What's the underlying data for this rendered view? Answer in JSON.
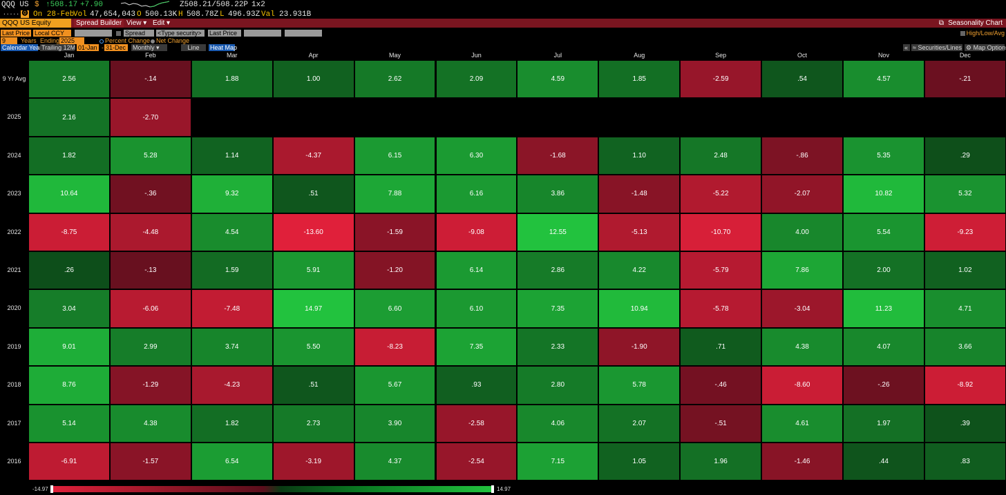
{
  "quote": {
    "ticker": "QQQ US",
    "currency_symbol": "$",
    "last_price": "↑508.17",
    "change": "+7.90",
    "bid_ask": "Z508.21/508.22P",
    "size": "1x2",
    "date_label": "On 28-Feb",
    "vol_label": "Vol",
    "vol_value": "47,654,043",
    "open_label": "O",
    "open_value": "500.13K",
    "high_label": "H",
    "high_value": "508.78Z",
    "low_label": "L",
    "low_value": "496.93Z",
    "val_label": "Val",
    "val_value": "23.931B",
    "dots": "....."
  },
  "titlebar": {
    "security": "QQQ US Equity",
    "spread_builder": "Spread Builder",
    "view_menu": "View ▾",
    "edit_menu": "Edit ▾",
    "function_title": "Seasonality Chart",
    "export_icon": "export-icon"
  },
  "controls": {
    "row1": {
      "last_price_1": "Last Price",
      "local_ccy": "Local CCY",
      "spread": "Spread",
      "type_security": "<Type security>",
      "last_price_2": "Last Price",
      "high_low_avg": "High/Low/Avg"
    },
    "row2": {
      "years_value": "9",
      "years_label": "Years",
      "ending_label": "Ending",
      "ending_value": "2025",
      "percent_change": "Percent Change",
      "net_change": "Net Change"
    },
    "row3": {
      "calendar_year": "Calendar Year",
      "trailing_12m": "Trailing 12M",
      "start_date": "01-Jan",
      "end_date": "31-Dec",
      "frequency": "Monthly ▾",
      "line": "Line",
      "heat_map": "Heat Map",
      "collapse": "«",
      "securities_lines": "≈ Securities/Lines",
      "map_options": "⚙ Map Options"
    }
  },
  "grid": {
    "columns": [
      "Jan",
      "Feb",
      "Mar",
      "Apr",
      "May",
      "Jun",
      "Jul",
      "Aug",
      "Sep",
      "Oct",
      "Nov",
      "Dec"
    ],
    "rows": [
      {
        "label": "9 Yr Avg",
        "values": [
          "2.56",
          "-.14",
          "1.88",
          "1.00",
          "2.62",
          "2.09",
          "4.59",
          "1.85",
          "-2.59",
          ".54",
          "4.57",
          "-.21"
        ]
      },
      {
        "label": "2025",
        "values": [
          "2.16",
          "-2.70"
        ]
      },
      {
        "label": "2024",
        "values": [
          "1.82",
          "5.28",
          "1.14",
          "-4.37",
          "6.15",
          "6.30",
          "-1.68",
          "1.10",
          "2.48",
          "-.86",
          "5.35",
          ".29"
        ]
      },
      {
        "label": "2023",
        "values": [
          "10.64",
          "-.36",
          "9.32",
          ".51",
          "7.88",
          "6.16",
          "3.86",
          "-1.48",
          "-5.22",
          "-2.07",
          "10.82",
          "5.32"
        ]
      },
      {
        "label": "2022",
        "values": [
          "-8.75",
          "-4.48",
          "4.54",
          "-13.60",
          "-1.59",
          "-9.08",
          "12.55",
          "-5.13",
          "-10.70",
          "4.00",
          "5.54",
          "-9.23"
        ]
      },
      {
        "label": "2021",
        "values": [
          ".26",
          "-.13",
          "1.59",
          "5.91",
          "-1.20",
          "6.14",
          "2.86",
          "4.22",
          "-5.79",
          "7.86",
          "2.00",
          "1.02"
        ]
      },
      {
        "label": "2020",
        "values": [
          "3.04",
          "-6.06",
          "-7.48",
          "14.97",
          "6.60",
          "6.10",
          "7.35",
          "10.94",
          "-5.78",
          "-3.04",
          "11.23",
          "4.71"
        ]
      },
      {
        "label": "2019",
        "values": [
          "9.01",
          "2.99",
          "3.74",
          "5.50",
          "-8.23",
          "7.35",
          "2.33",
          "-1.90",
          ".71",
          "4.38",
          "4.07",
          "3.66"
        ]
      },
      {
        "label": "2018",
        "values": [
          "8.76",
          "-1.29",
          "-4.23",
          ".51",
          "5.67",
          ".93",
          "2.80",
          "5.78",
          "-.46",
          "-8.60",
          "-.26",
          "-8.92"
        ]
      },
      {
        "label": "2017",
        "values": [
          "5.14",
          "4.38",
          "1.82",
          "2.73",
          "3.90",
          "-2.58",
          "4.06",
          "2.07",
          "-.51",
          "4.61",
          "1.97",
          ".39"
        ]
      },
      {
        "label": "2016",
        "values": [
          "-6.91",
          "-1.57",
          "6.54",
          "-3.19",
          "4.37",
          "-2.54",
          "7.15",
          "1.05",
          "1.96",
          "-1.46",
          ".44",
          ".83"
        ]
      }
    ]
  },
  "legend": {
    "min": "-14.97",
    "max": "14.97",
    "min_value": -14.97,
    "max_value": 14.97
  },
  "colors": {
    "negative_strong": "#e0203a",
    "negative_weak": "#5a0e1c",
    "positive_weak": "#0a3a14",
    "positive_strong": "#22c23e",
    "title_bar": "#7a1520",
    "accent_orange": "#f09020"
  }
}
